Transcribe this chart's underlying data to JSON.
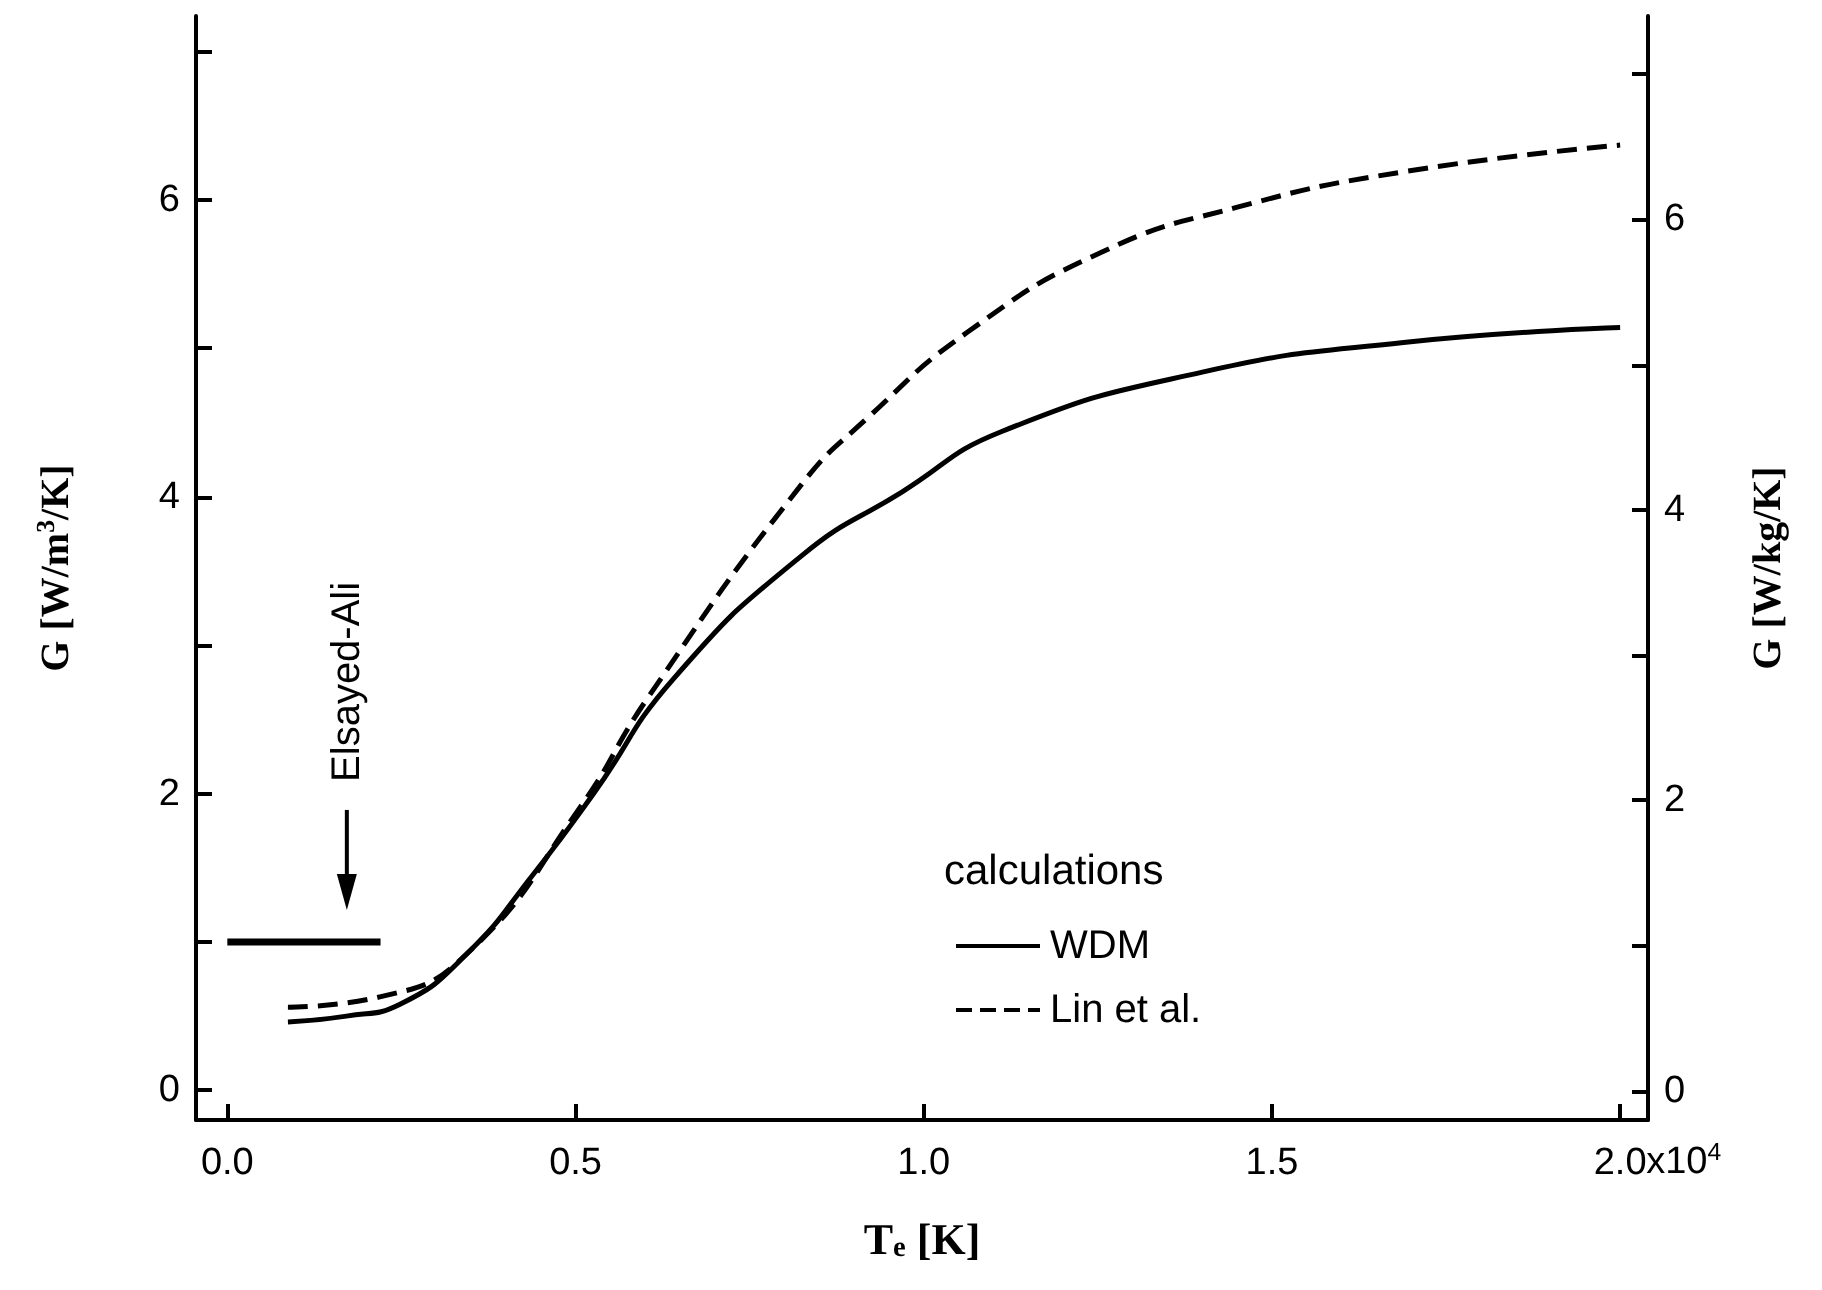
{
  "chart_data": {
    "type": "line",
    "xlabel": "T$_{e}$ [K]",
    "ylabel": "G [W/m$^{3}$/K]",
    "y2label": "G [W/kg/K]",
    "legend_title": "calculations",
    "legend": "bottom right",
    "marker": "none",
    "xlim": [
      -0.045,
      2.04
    ],
    "xticks": [
      {
        "value": 0,
        "label": "0.0"
      },
      0.5,
      {
        "value": 1,
        "label": "1.0"
      },
      1.5,
      {
        "value": 2,
        "label": "2.0"
      }
    ],
    "ylim": [
      -0.2,
      7.24
    ],
    "yticks": [
      0,
      {
        "value": 1,
        "label": null
      },
      2,
      {
        "value": 3,
        "label": null
      },
      4,
      {
        "value": 5,
        "label": null
      },
      6,
      {
        "value": 7,
        "label": null
      }
    ],
    "y2lim": [
      -0.2,
      7.4
    ],
    "y2ticks": [
      0,
      {
        "value": 1,
        "label": null
      },
      2,
      {
        "value": 3,
        "label": null
      },
      4,
      {
        "value": 5,
        "label": null
      },
      6,
      {
        "value": 7,
        "label": null
      }
    ],
    "annotations": [
      "Elsayed-Ali",
      "x10$^{4}$"
    ],
    "series": [
      {
        "name": "WDM",
        "color": "#000000",
        "line_style": "solid",
        "x": [
          0.087,
          0.171,
          0.248,
          0.344,
          0.44,
          0.526,
          0.64,
          0.824,
          0.968,
          1.112,
          1.4,
          1.689,
          2.0
        ],
        "values": [
          0.46,
          0.5,
          0.58,
          0.92,
          1.46,
          2.0,
          2.77,
          3.6,
          4.03,
          4.44,
          4.84,
          5.04,
          5.14
        ]
      },
      {
        "name": "Lin et al.",
        "color": "#000000",
        "line_style": "dashed",
        "x": [
          0.087,
          0.219,
          0.344,
          0.507,
          0.603,
          0.824,
          0.919,
          1.063,
          1.256,
          1.449,
          1.689,
          2.0
        ],
        "values": [
          0.56,
          0.63,
          0.92,
          1.91,
          2.64,
          4.08,
          4.53,
          5.11,
          5.65,
          5.95,
          6.19,
          6.37
        ]
      },
      {
        "color": "#000000",
        "line_style": "solid",
        "x": [
          0.0,
          0.22
        ],
        "values": [
          1.0,
          1.0
        ]
      }
    ]
  }
}
